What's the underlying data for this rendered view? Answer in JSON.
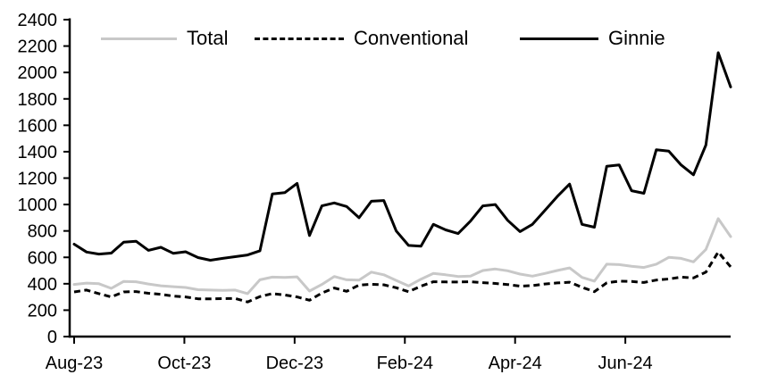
{
  "chart_data": {
    "type": "line",
    "title": "",
    "xlabel": "",
    "ylabel": "",
    "x_unit": "week",
    "ylim": [
      0,
      2400
    ],
    "y_tick_step": 200,
    "y_tick_labels": [
      "0",
      "200",
      "400",
      "600",
      "800",
      "1000",
      "1200",
      "1400",
      "1600",
      "1800",
      "2000",
      "2200",
      "2400"
    ],
    "x_tick_labels": [
      "Aug-23",
      "Oct-23",
      "Dec-23",
      "Feb-24",
      "Apr-24",
      "Jun-24"
    ],
    "x_tick_week_positions": [
      0,
      8.9,
      17.8,
      26.7,
      35.6,
      44.5
    ],
    "grid": false,
    "legend_position": "top",
    "series": [
      {
        "name": "Total",
        "color": "#c8c8c8",
        "style": "solid",
        "values": [
          395,
          405,
          400,
          365,
          418,
          415,
          398,
          385,
          378,
          372,
          355,
          352,
          350,
          352,
          325,
          430,
          450,
          448,
          452,
          345,
          395,
          455,
          430,
          428,
          488,
          468,
          425,
          383,
          435,
          478,
          468,
          455,
          458,
          500,
          512,
          498,
          473,
          458,
          478,
          500,
          520,
          448,
          420,
          548,
          545,
          533,
          523,
          548,
          600,
          592,
          566,
          660,
          893,
          757
        ]
      },
      {
        "name": "Conventional",
        "color": "#000000",
        "style": "dashed",
        "values": [
          338,
          352,
          325,
          300,
          338,
          341,
          328,
          320,
          307,
          300,
          286,
          285,
          287,
          289,
          262,
          303,
          325,
          315,
          300,
          275,
          330,
          368,
          343,
          390,
          396,
          392,
          370,
          340,
          382,
          415,
          414,
          413,
          415,
          408,
          402,
          394,
          382,
          386,
          398,
          406,
          412,
          373,
          340,
          407,
          420,
          417,
          410,
          428,
          436,
          450,
          444,
          488,
          640,
          528
        ]
      },
      {
        "name": "Ginnie",
        "color": "#000000",
        "style": "solid",
        "values": [
          700,
          640,
          625,
          632,
          715,
          722,
          653,
          676,
          631,
          642,
          598,
          578,
          592,
          605,
          618,
          650,
          1080,
          1090,
          1160,
          765,
          990,
          1012,
          985,
          900,
          1025,
          1030,
          800,
          690,
          685,
          850,
          808,
          780,
          875,
          990,
          1000,
          880,
          795,
          850,
          955,
          1060,
          1155,
          850,
          828,
          1290,
          1300,
          1105,
          1085,
          1415,
          1405,
          1300,
          1225,
          1450,
          2150,
          1890
        ]
      }
    ]
  }
}
